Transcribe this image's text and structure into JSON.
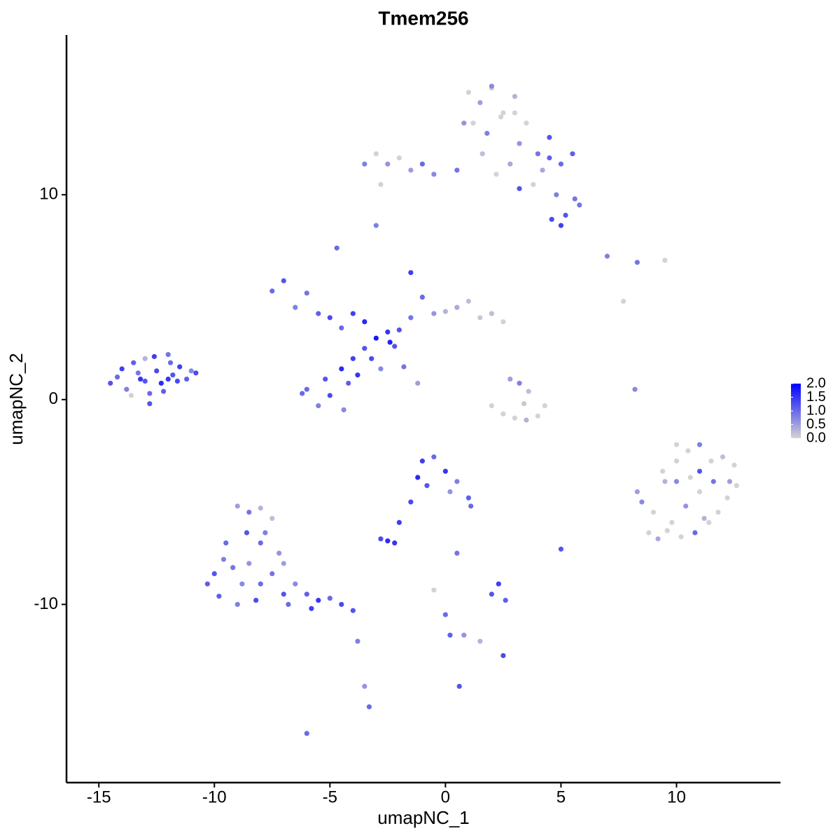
{
  "chart_data": {
    "type": "scatter",
    "title": "Tmem256",
    "x_label": "umapNC_1",
    "y_label": "umapNC_2",
    "x": [
      -14.5,
      -14,
      -13.8,
      -13.5,
      -13.2,
      -13,
      -12.8,
      -12.5,
      -12.3,
      -12,
      -11.8,
      -11.5,
      -11.2,
      -11,
      -10.8,
      -14.2,
      -13.6,
      -13,
      -12.6,
      -12.2,
      -11.9,
      -11.6,
      -12.8,
      -13.3,
      -12,
      -7.5,
      -7,
      -6.5,
      -6,
      -5.5,
      -5,
      -4.5,
      -4,
      -3.5,
      -3,
      -2.5,
      -2,
      -1.5,
      -1,
      -0.5,
      0,
      0.5,
      1,
      1.5,
      2,
      2.5,
      -6,
      -5.5,
      -5,
      -4.5,
      -4,
      -3.5,
      -4.2,
      -3.8,
      -3.2,
      -2.8,
      -2.2,
      -1.8,
      -1.2,
      -4.4,
      -5.2,
      -6.2,
      -4.7,
      -1.5,
      -2.4,
      1,
      1.5,
      2,
      2.5,
      3,
      1.2,
      1.8,
      2.4,
      3.2,
      3.5,
      4,
      4.5,
      5,
      5.5,
      4.2,
      4.8,
      5.2,
      5.6,
      4.6,
      3.8,
      2.8,
      2.2,
      1.6,
      0.8,
      3.2,
      4.5,
      5,
      5.8,
      2,
      3,
      -3.5,
      -3,
      -2.5,
      -2,
      -1.5,
      -1,
      -0.5,
      0.5,
      -2.8,
      -3,
      2,
      2.5,
      3,
      3.5,
      4,
      4.3,
      3.2,
      2.8,
      3.6,
      3.4,
      8.3,
      8.8,
      9,
      9.5,
      10,
      10.5,
      11,
      11.5,
      12,
      12.5,
      9.2,
      9.8,
      10.4,
      11,
      11.6,
      12.2,
      9.4,
      10,
      10.6,
      11.2,
      11.8,
      12.3,
      9.6,
      10.2,
      10.8,
      11.4,
      8.5,
      10,
      11,
      12.6,
      -9,
      -8.5,
      -8,
      -7.5,
      -9.5,
      -10,
      -10.3,
      -9,
      -8.5,
      -8,
      -7.5,
      -7,
      -6.5,
      -6,
      -5.5,
      -5,
      -4.5,
      -4,
      -9.8,
      -8.8,
      -7.8,
      -7.2,
      -8.2,
      -9.2,
      -6.8,
      -5.8,
      -8.6,
      -9.6,
      -7,
      -8,
      -1,
      -0.5,
      0,
      0.5,
      1,
      -1.2,
      -0.8,
      0.2,
      1.1,
      -1.5,
      -2,
      -2.5,
      -2.8,
      -2.2,
      0.5,
      -0.5,
      0,
      0.2,
      0.8,
      1.5,
      2,
      2.3,
      2.6,
      2.5,
      5,
      -3.8,
      -3.5,
      -3.3,
      -6,
      0.6,
      7,
      8.3,
      9.5,
      8.2,
      7.7
    ],
    "y": [
      0.8,
      1.5,
      0.5,
      1.8,
      1.0,
      2.0,
      0.3,
      1.4,
      0.8,
      2.2,
      1.2,
      1.6,
      1.0,
      1.4,
      1.3,
      1.1,
      0.2,
      0.9,
      2.1,
      0.4,
      1.8,
      0.9,
      -0.2,
      1.3,
      1.0,
      5.3,
      5.8,
      4.5,
      5.2,
      4.2,
      4.0,
      3.5,
      4.2,
      3.8,
      3.0,
      3.3,
      3.4,
      4.0,
      5.0,
      4.2,
      4.3,
      4.5,
      4.8,
      4.0,
      4.2,
      3.8,
      0.5,
      -0.3,
      0.2,
      1.5,
      2.0,
      2.5,
      0.8,
      1.2,
      2.0,
      1.5,
      2.6,
      1.6,
      0.8,
      -0.5,
      1.0,
      0.3,
      7.4,
      6.2,
      2.8,
      15,
      14.5,
      15.2,
      14,
      14.8,
      13.5,
      13,
      13.8,
      12.5,
      13.5,
      12,
      12.8,
      11.5,
      12,
      11.2,
      10,
      9,
      9.8,
      8.8,
      10.5,
      11.5,
      11,
      12,
      13.5,
      10.3,
      11.8,
      8.5,
      9.5,
      15.3,
      14,
      11.5,
      12,
      11.5,
      11.8,
      11.2,
      11.5,
      11,
      11.2,
      10.5,
      8.5,
      -0.3,
      -0.7,
      -0.9,
      -1,
      -0.8,
      -0.3,
      0.8,
      1.0,
      0.4,
      -0.2,
      -4.5,
      -6.5,
      -5.5,
      -4,
      -3,
      -2.5,
      -2.2,
      -3,
      -2.8,
      -3.2,
      -6.8,
      -6,
      -5.2,
      -4.5,
      -4,
      -4.8,
      -3.5,
      -4,
      -3.8,
      -5.8,
      -5.5,
      -4,
      -6.4,
      -6.7,
      -6.5,
      -6,
      -5,
      -2.2,
      -3.5,
      -4.2,
      -5.2,
      -5.5,
      -5.3,
      -5.8,
      -7,
      -8.5,
      -9,
      -10,
      -8,
      -7,
      -8.5,
      -9.5,
      -9,
      -9.5,
      -9.8,
      -9.7,
      -10,
      -10.3,
      -9.6,
      -9,
      -6.5,
      -7.5,
      -9.8,
      -8.2,
      -10,
      -10.2,
      -6.5,
      -7.8,
      -8,
      -9,
      -3,
      -2.8,
      -3.5,
      -4,
      -4.8,
      -3.8,
      -4.2,
      -4.5,
      -5.2,
      -5,
      -6,
      -6.9,
      -6.8,
      -7,
      -7.5,
      -9.3,
      -10.5,
      -11.5,
      -11.5,
      -11.8,
      -9.5,
      -9,
      -9.8,
      -12.5,
      -7.3,
      -11.8,
      -14,
      -15,
      -16.3,
      -14,
      7,
      6.7,
      6.8,
      0.5,
      4.8
    ],
    "values": [
      1.2,
      1.4,
      0.8,
      1.1,
      1.5,
      0.3,
      1.0,
      1.3,
      1.6,
      0.9,
      1.2,
      1.4,
      1.1,
      0.7,
      1.3,
      1.0,
      0,
      1.2,
      1.4,
      1.1,
      1.0,
      1.3,
      1.2,
      0.9,
      1.5,
      1.0,
      1.2,
      0.8,
      0.9,
      1.1,
      1.3,
      1.0,
      1.4,
      1.6,
      1.8,
      1.5,
      1.2,
      0.9,
      1.0,
      0.6,
      0.3,
      0.4,
      0.2,
      0.1,
      0.2,
      0,
      1.0,
      0.8,
      1.3,
      1.6,
      1.4,
      1.2,
      1.1,
      1.5,
      1.3,
      0.7,
      1.2,
      0.9,
      0.5,
      0.7,
      1.2,
      1.0,
      1.0,
      1.4,
      1.7,
      0,
      0.5,
      0,
      0,
      0.3,
      0,
      0.8,
      0,
      0.6,
      0,
      0.9,
      1.2,
      1.0,
      1.1,
      0.4,
      0.8,
      1.2,
      0.9,
      1.3,
      0,
      0.4,
      0,
      0.2,
      0.6,
      1.2,
      1.1,
      1.4,
      0.9,
      0.7,
      0,
      0.8,
      0,
      0.6,
      0,
      0.5,
      1.0,
      0.7,
      0.9,
      0,
      0.8,
      0,
      0,
      0,
      0.3,
      0,
      0,
      0.8,
      0.5,
      0.2,
      0.1,
      0.5,
      0,
      0,
      0.3,
      0,
      0,
      0.8,
      0,
      0.2,
      0,
      0.4,
      0,
      0.6,
      0,
      0.9,
      0,
      0,
      0.7,
      0,
      0.3,
      0,
      0.5,
      0,
      0,
      1.0,
      0,
      0.7,
      0,
      1.2,
      0,
      0.5,
      0.9,
      0.3,
      0.2,
      1.0,
      1.2,
      1.1,
      0.8,
      0.6,
      1.0,
      0.9,
      1.2,
      0.7,
      1.1,
      1.5,
      1.0,
      1.3,
      1.2,
      1.1,
      0.7,
      0.8,
      0.6,
      1.3,
      0.9,
      1.0,
      1.4,
      1.2,
      0.8,
      0.5,
      1.0,
      1.4,
      1.0,
      1.5,
      0.8,
      1.1,
      1.6,
      1.2,
      0.6,
      1.0,
      1.3,
      1.4,
      1.6,
      1.3,
      1.5,
      0.9,
      0,
      1.0,
      1.1,
      0.6,
      0.3,
      1.2,
      1.4,
      1.1,
      1.3,
      1.2,
      0.8,
      0.6,
      1.0,
      1.0,
      1.2,
      0.8,
      0.9,
      0,
      0.7,
      0
    ],
    "xlim": [
      -16.4,
      14.5
    ],
    "ylim": [
      -18.7,
      17.8
    ],
    "xticks": [
      -15,
      -10,
      -5,
      0,
      5,
      10
    ],
    "yticks": [
      -10,
      0,
      10
    ],
    "low_color": "#d3d3d3",
    "high_color": "#0000ff",
    "colorlim": [
      0,
      2
    ],
    "colorticks": [
      {
        "value": 0,
        "label": "0.0"
      },
      {
        "value": 0.5,
        "label": "0.5"
      },
      {
        "value": 1,
        "label": "1.0"
      },
      {
        "value": 1.5,
        "label": "1.5"
      },
      {
        "value": 2,
        "label": "2.0"
      }
    ]
  }
}
